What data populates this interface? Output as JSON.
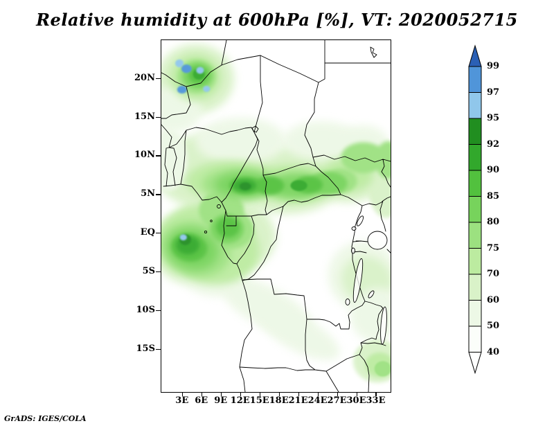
{
  "title": "Relative humidity at 600hPa [%], VT: 2020052715",
  "footer_credit": "GrADS: IGES/COLA",
  "chart_data": {
    "type": "heatmap",
    "style": "filled_contour_map",
    "title": "Relative humidity at 600hPa [%], VT: 2020052715",
    "variable": "Relative humidity",
    "pressure_level": "600hPa",
    "units": "%",
    "valid_time": "2020052715",
    "grid": false,
    "legend_position": "right",
    "geo": {
      "lon_range": [
        -0.3,
        35.2
      ],
      "lat_range": [
        -20.5,
        25.0
      ]
    },
    "x_axis": {
      "ticks": [
        {
          "value": 3,
          "label": "3E"
        },
        {
          "value": 6,
          "label": "6E"
        },
        {
          "value": 9,
          "label": "9E"
        },
        {
          "value": 12,
          "label": "12E"
        },
        {
          "value": 15,
          "label": "15E"
        },
        {
          "value": 18,
          "label": "18E"
        },
        {
          "value": 21,
          "label": "21E"
        },
        {
          "value": 24,
          "label": "24E"
        },
        {
          "value": 27,
          "label": "27E"
        },
        {
          "value": 30,
          "label": "30E"
        },
        {
          "value": 33,
          "label": "33E"
        }
      ]
    },
    "y_axis": {
      "ticks": [
        {
          "value": 20,
          "label": "20N"
        },
        {
          "value": 15,
          "label": "15N"
        },
        {
          "value": 10,
          "label": "10N"
        },
        {
          "value": 5,
          "label": "5N"
        },
        {
          "value": 0,
          "label": "EQ"
        },
        {
          "value": -5,
          "label": "5S"
        },
        {
          "value": -10,
          "label": "10S"
        },
        {
          "value": -15,
          "label": "15S"
        }
      ]
    },
    "colorbar": {
      "boundary_labels_top_to_bottom": [
        "99",
        "97",
        "95",
        "92",
        "90",
        "85",
        "80",
        "75",
        "70",
        "60",
        "50",
        "40"
      ],
      "segment_colors_top_to_bottom": [
        "#2b60b5",
        "#5095d9",
        "#90c7eb",
        "#218e20",
        "#32a82c",
        "#52c13e",
        "#77d35c",
        "#9ce180",
        "#bceba0",
        "#d9f2c8",
        "#edf8e6",
        "#fbfefa",
        "#ffffff"
      ]
    },
    "palette": {
      "50": "#edf8e6",
      "60": "#d9f2c8",
      "70": "#bcebа0",
      "75": "#9ce180",
      "80": "#77d35c",
      "85": "#52c13e",
      "90": "#32a82c",
      "92": "#218e20",
      "95": "#90c7eb",
      "97": "#5095d9",
      "99": "#2b60b5"
    },
    "shading_regions": [
      [
        8,
        8,
        9.5,
        5,
        "60",
        0
      ],
      [
        19,
        7,
        9,
        4.5,
        "60",
        0
      ],
      [
        28.5,
        8,
        6.5,
        4,
        "60",
        0
      ],
      [
        34.5,
        7,
        3,
        5,
        "60",
        0
      ],
      [
        5,
        20,
        6,
        4.5,
        "60",
        0
      ],
      [
        1.5,
        16,
        4.5,
        3,
        "50",
        0
      ],
      [
        12,
        12,
        7,
        3,
        "50",
        0
      ],
      [
        24.5,
        12,
        6,
        2.5,
        "50",
        0
      ],
      [
        31,
        11.5,
        4,
        2.5,
        "50",
        0
      ],
      [
        9.5,
        0,
        8,
        5,
        "60",
        10
      ],
      [
        4,
        -2,
        6,
        4.5,
        "60",
        15
      ],
      [
        31,
        -5.5,
        5.5,
        4.5,
        "50",
        20
      ],
      [
        31.5,
        -6,
        4,
        3,
        "60",
        20
      ],
      [
        33,
        -10.5,
        4,
        3.5,
        "50",
        25
      ],
      [
        33.2,
        -16.5,
        3.8,
        2.8,
        "60",
        0
      ],
      [
        16,
        -9.5,
        8,
        2.6,
        "50",
        28
      ],
      [
        21,
        -13,
        7,
        2.2,
        "50",
        28
      ],
      [
        7,
        -5,
        5,
        3,
        "50",
        20
      ],
      [
        0.8,
        9.5,
        3,
        4,
        "50",
        0
      ],
      [
        10.5,
        6.8,
        7,
        2.6,
        "70",
        0
      ],
      [
        20,
        6.5,
        7,
        2.4,
        "70",
        0
      ],
      [
        28.5,
        7.5,
        4,
        2.2,
        "70",
        0
      ],
      [
        7,
        -1.5,
        8,
        5,
        "70",
        15
      ],
      [
        5,
        20.2,
        4,
        3,
        "70",
        0
      ],
      [
        31,
        9.8,
        3.5,
        2,
        "75",
        0
      ],
      [
        34.8,
        9.5,
        2,
        2.4,
        "75",
        0
      ],
      [
        11.5,
        6.4,
        5.5,
        2,
        "75",
        0
      ],
      [
        20.5,
        6.2,
        5,
        1.8,
        "75",
        0
      ],
      [
        9,
        3,
        3.5,
        2.5,
        "75",
        0
      ],
      [
        10.5,
        0.5,
        3.5,
        2.5,
        "75",
        0
      ],
      [
        5,
        -2,
        5.5,
        3.5,
        "75",
        15
      ],
      [
        5.2,
        20.3,
        3,
        2.2,
        "75",
        0
      ],
      [
        27.5,
        6.8,
        2.5,
        1.6,
        "75",
        0
      ],
      [
        33.5,
        -17,
        2.2,
        1.6,
        "70",
        0
      ],
      [
        12.5,
        6.3,
        4.5,
        1.6,
        "80",
        0
      ],
      [
        20.5,
        6.1,
        4,
        1.4,
        "80",
        0
      ],
      [
        4.5,
        -2,
        4,
        2.6,
        "80",
        15
      ],
      [
        9.9,
        0.6,
        2.6,
        1.9,
        "80",
        0
      ],
      [
        5.3,
        20.4,
        2.3,
        1.7,
        "80",
        0
      ],
      [
        25.5,
        6.5,
        3,
        1.5,
        "80",
        0
      ],
      [
        16.5,
        6.2,
        2.2,
        1.2,
        "85",
        0
      ],
      [
        12.8,
        6.2,
        2.6,
        1.1,
        "85",
        0
      ],
      [
        22.5,
        6.3,
        2.2,
        1.1,
        "85",
        0
      ],
      [
        4,
        -1.8,
        2.8,
        1.8,
        "85",
        10
      ],
      [
        10,
        0.8,
        1.8,
        1.3,
        "85",
        0
      ],
      [
        5.4,
        20.5,
        1.5,
        1.1,
        "85",
        0
      ],
      [
        34,
        -17.5,
        1.3,
        1,
        "75",
        0
      ],
      [
        12.6,
        6.2,
        1.8,
        0.8,
        "90",
        0
      ],
      [
        3.8,
        -1.5,
        1.8,
        1.2,
        "90",
        0
      ],
      [
        5.5,
        20.6,
        0.9,
        0.7,
        "90",
        0
      ],
      [
        21,
        6.2,
        1.3,
        0.7,
        "90",
        0
      ],
      [
        3.4,
        -0.8,
        0.9,
        0.7,
        "92",
        0
      ],
      [
        12.7,
        6.1,
        0.9,
        0.5,
        "92",
        0
      ],
      [
        2.5,
        22,
        0.65,
        0.5,
        "95",
        0
      ],
      [
        3.6,
        21.3,
        0.8,
        0.55,
        "97",
        0
      ],
      [
        5.7,
        21.1,
        0.6,
        0.45,
        "95",
        0
      ],
      [
        2.9,
        18.6,
        0.75,
        0.5,
        "97",
        0
      ],
      [
        6.7,
        18.7,
        0.55,
        0.4,
        "95",
        0
      ],
      [
        3.1,
        -0.5,
        0.55,
        0.4,
        "95",
        0
      ]
    ]
  }
}
